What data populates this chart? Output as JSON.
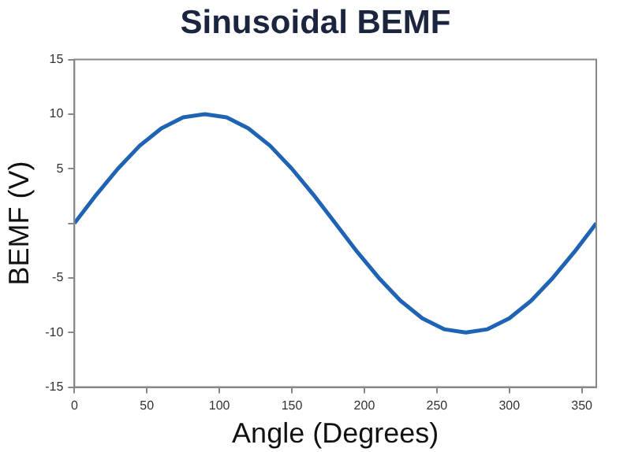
{
  "chart_data": {
    "type": "line",
    "title": "Sinusoidal BEMF",
    "xlabel": "Angle (Degrees)",
    "ylabel": "BEMF (V)",
    "x": [
      0,
      15,
      30,
      45,
      60,
      75,
      90,
      105,
      120,
      135,
      150,
      165,
      180,
      195,
      210,
      225,
      240,
      255,
      270,
      285,
      300,
      315,
      330,
      345,
      360
    ],
    "series": [
      {
        "color": "#1f63b5",
        "values": [
          0,
          2.6,
          5,
          7.1,
          8.7,
          9.7,
          10,
          9.7,
          8.7,
          7.1,
          5,
          2.6,
          0,
          -2.6,
          -5,
          -7.1,
          -8.7,
          -9.7,
          -10,
          -9.7,
          -8.7,
          -7.1,
          -5,
          -2.6,
          0
        ]
      }
    ],
    "xlim": [
      0,
      360
    ],
    "xticks": [
      0,
      50,
      100,
      150,
      200,
      250,
      300,
      350
    ],
    "ylim": [
      -15,
      15
    ],
    "yticks": [
      -15,
      -10,
      -5,
      {
        "value": 0,
        "label": null
      },
      5,
      10,
      15
    ],
    "grid": false,
    "legend": false,
    "marker": "none",
    "line_style": "solid"
  }
}
